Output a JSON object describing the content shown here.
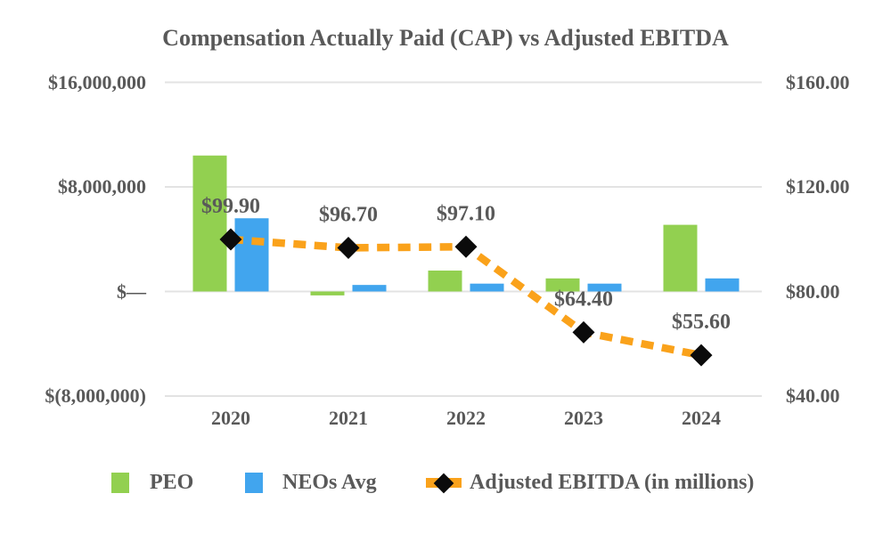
{
  "title": "Compensation Actually Paid (CAP) vs Adjusted EBITDA",
  "colors": {
    "peo": "#92D050",
    "neos": "#41A5EE",
    "ebitda_line": "#FAA21B",
    "marker": "#0B0B0B",
    "text": "#595959",
    "gridline": "#E3E3E3"
  },
  "chart_data": {
    "type": "bar",
    "subtype": "combo-bar-line",
    "title": "Compensation Actually Paid (CAP) vs Adjusted EBITDA",
    "categories": [
      "2020",
      "2021",
      "2022",
      "2023",
      "2024"
    ],
    "series": [
      {
        "name": "PEO",
        "type": "bar",
        "axis": "left",
        "values": [
          10400000,
          -300000,
          1600000,
          1000000,
          5100000
        ]
      },
      {
        "name": "NEOs Avg",
        "type": "bar",
        "axis": "left",
        "values": [
          5600000,
          500000,
          600000,
          600000,
          1000000
        ]
      },
      {
        "name": "Adjusted EBITDA (in millions)",
        "type": "line",
        "axis": "right",
        "values": [
          99.9,
          96.7,
          97.1,
          64.4,
          55.6
        ],
        "point_labels": [
          "$99.90",
          "$96.70",
          "$97.10",
          "$64.40",
          "$55.60"
        ]
      }
    ],
    "left_axis": {
      "ticks": [
        16000000,
        8000000,
        0,
        -8000000
      ],
      "tick_labels": [
        "$16,000,000",
        "$8,000,000",
        "$—",
        "$(8,000,000)"
      ],
      "range": [
        -8000000,
        16000000
      ]
    },
    "right_axis": {
      "ticks": [
        160,
        120,
        80,
        40
      ],
      "tick_labels": [
        "$160.00",
        "$120.00",
        "$80.00",
        "$40.00"
      ],
      "range": [
        40,
        160
      ]
    },
    "grid": true,
    "legend_position": "bottom"
  },
  "legend": {
    "items": [
      {
        "label": "PEO",
        "swatch": "bar",
        "color": "#92D050"
      },
      {
        "label": "NEOs Avg",
        "swatch": "bar",
        "color": "#41A5EE"
      },
      {
        "label": "Adjusted EBITDA (in millions)",
        "swatch": "line-diamond",
        "color": "#FAA21B"
      }
    ]
  }
}
